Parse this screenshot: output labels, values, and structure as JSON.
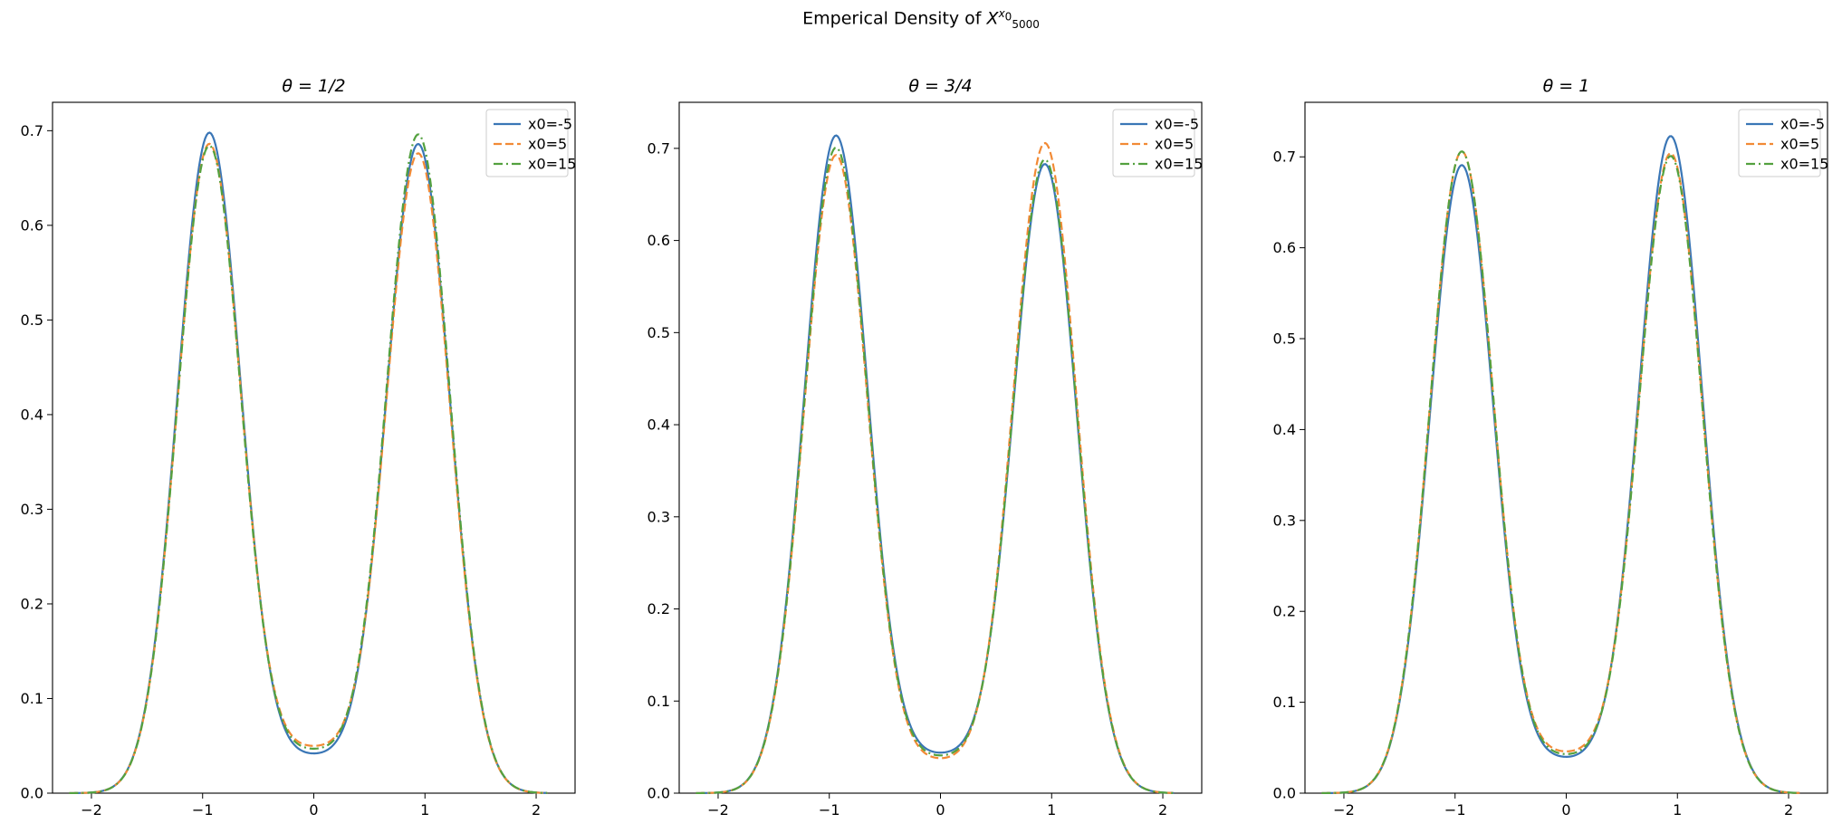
{
  "figure": {
    "title_prefix": "Emperical Density of ",
    "title_var": "X",
    "title_sup_var": "x",
    "title_sup_sub": "0",
    "title_sub": "5000"
  },
  "colors": {
    "series": [
      "#3a76b6",
      "#f28a35",
      "#53a13f"
    ]
  },
  "chart_data": [
    {
      "type": "line",
      "title": "θ = 1/2",
      "xlim": [
        -2.35,
        2.35
      ],
      "ylim": [
        0,
        0.73
      ],
      "xticks": [
        -2,
        -1,
        0,
        1,
        2
      ],
      "yticks": [
        0.0,
        0.1,
        0.2,
        0.3,
        0.4,
        0.5,
        0.6,
        0.7
      ],
      "grid": false,
      "legend": "top-right",
      "x_range": [
        -2.2,
        2.1
      ],
      "series": [
        {
          "name": "x0=-5",
          "style": "solid",
          "peak_left": 0.697,
          "peak_right": 0.685,
          "valley": 0.042
        },
        {
          "name": "x0=5",
          "style": "dashed",
          "peak_left": 0.685,
          "peak_right": 0.675,
          "valley": 0.05
        },
        {
          "name": "x0=15",
          "style": "dashdot",
          "peak_left": 0.683,
          "peak_right": 0.695,
          "valley": 0.047
        }
      ]
    },
    {
      "type": "line",
      "title": "θ = 3/4",
      "xlim": [
        -2.35,
        2.35
      ],
      "ylim": [
        0,
        0.75
      ],
      "xticks": [
        -2,
        -1,
        0,
        1,
        2
      ],
      "yticks": [
        0.0,
        0.1,
        0.2,
        0.3,
        0.4,
        0.5,
        0.6,
        0.7
      ],
      "grid": false,
      "legend": "top-right",
      "x_range": [
        -2.2,
        2.1
      ],
      "series": [
        {
          "name": "x0=-5",
          "style": "solid",
          "peak_left": 0.713,
          "peak_right": 0.682,
          "valley": 0.044
        },
        {
          "name": "x0=5",
          "style": "dashed",
          "peak_left": 0.692,
          "peak_right": 0.705,
          "valley": 0.038
        },
        {
          "name": "x0=15",
          "style": "dashdot",
          "peak_left": 0.7,
          "peak_right": 0.687,
          "valley": 0.041
        }
      ]
    },
    {
      "type": "line",
      "title": "θ = 1",
      "xlim": [
        -2.35,
        2.35
      ],
      "ylim": [
        0,
        0.76
      ],
      "xticks": [
        -2,
        -1,
        0,
        1,
        2
      ],
      "yticks": [
        0.0,
        0.1,
        0.2,
        0.3,
        0.4,
        0.5,
        0.6,
        0.7
      ],
      "grid": false,
      "legend": "top-right",
      "x_range": [
        -2.2,
        2.1
      ],
      "series": [
        {
          "name": "x0=-5",
          "style": "solid",
          "peak_left": 0.69,
          "peak_right": 0.722,
          "valley": 0.04
        },
        {
          "name": "x0=5",
          "style": "dashed",
          "peak_left": 0.705,
          "peak_right": 0.703,
          "valley": 0.046
        },
        {
          "name": "x0=15",
          "style": "dashdot",
          "peak_left": 0.705,
          "peak_right": 0.7,
          "valley": 0.043
        }
      ]
    }
  ]
}
